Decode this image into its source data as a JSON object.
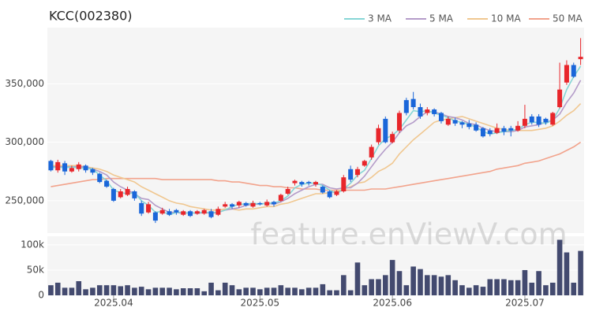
{
  "chart_data": [
    {
      "type": "candlestick",
      "title": "KCC(002380)",
      "annotation": "feature.enViewV.com",
      "up_color": "#e8262b",
      "down_color": "#1a66d9",
      "open": [
        284000,
        276000,
        282000,
        275000,
        277000,
        280000,
        277000,
        273000,
        267000,
        260000,
        253000,
        255000,
        258000,
        248000,
        240000,
        240000,
        239000,
        241000,
        242000,
        238000,
        241000,
        239000,
        239000,
        241000,
        238000,
        245000,
        247000,
        246000,
        248000,
        245000,
        248000,
        246000,
        249000,
        250000,
        256000,
        265000,
        266000,
        266000,
        264000,
        262000,
        258000,
        255000,
        258000,
        277000,
        272000,
        280000,
        287000,
        300000,
        320000,
        300000,
        310000,
        336000,
        337000,
        330000,
        325000,
        328000,
        325000,
        315000,
        319000,
        317000,
        316000,
        315000,
        312000,
        310000,
        308000,
        312000,
        312000,
        310000,
        314000,
        322000,
        322000,
        320000,
        315000,
        330000,
        351000,
        366000,
        371000
      ],
      "high": [
        285000,
        285000,
        284000,
        280000,
        283000,
        281000,
        278000,
        274000,
        268000,
        261000,
        260000,
        262000,
        259000,
        250000,
        249000,
        241000,
        244000,
        243000,
        243000,
        242000,
        242000,
        242000,
        243000,
        243000,
        245000,
        249000,
        248000,
        250000,
        249000,
        250000,
        249000,
        251000,
        250000,
        256000,
        262000,
        268000,
        267000,
        267000,
        267000,
        263000,
        259000,
        259000,
        272000,
        280000,
        279000,
        285000,
        298000,
        315000,
        322000,
        309000,
        327000,
        338000,
        343000,
        333000,
        330000,
        329000,
        326000,
        322000,
        321000,
        318000,
        319000,
        317000,
        313000,
        312000,
        316000,
        314000,
        314000,
        318000,
        332000,
        324000,
        324000,
        321000,
        326000,
        368000,
        370000,
        368000,
        389000
      ],
      "low": [
        275000,
        274000,
        272000,
        274000,
        275000,
        274000,
        272000,
        265000,
        261000,
        249000,
        252000,
        254000,
        250000,
        237000,
        239000,
        231000,
        238000,
        237000,
        238000,
        237000,
        236000,
        238000,
        238000,
        235000,
        237000,
        244000,
        243000,
        244000,
        245000,
        244000,
        246000,
        245000,
        245000,
        249000,
        255000,
        263000,
        262000,
        263000,
        262000,
        256000,
        252000,
        254000,
        257000,
        266000,
        270000,
        279000,
        285000,
        298000,
        299000,
        299000,
        308000,
        323000,
        328000,
        320000,
        323000,
        322000,
        316000,
        314000,
        314000,
        312000,
        311000,
        309000,
        304000,
        305000,
        307000,
        306000,
        305000,
        309000,
        312000,
        315000,
        313000,
        315000,
        314000,
        329000,
        349000,
        355000,
        366000
      ],
      "close": [
        276000,
        283000,
        275000,
        278000,
        281000,
        276000,
        274000,
        266000,
        262000,
        250000,
        258000,
        260000,
        252000,
        239000,
        247000,
        233000,
        242000,
        238000,
        240000,
        241000,
        237000,
        241000,
        242000,
        236000,
        243000,
        247000,
        245000,
        249000,
        246000,
        248000,
        247000,
        249000,
        247000,
        255000,
        260000,
        267000,
        264000,
        265000,
        266000,
        257000,
        253000,
        258000,
        270000,
        268000,
        277000,
        284000,
        296000,
        312000,
        300000,
        307000,
        325000,
        325000,
        330000,
        322000,
        328000,
        324000,
        318000,
        320000,
        316000,
        315000,
        313000,
        310000,
        305000,
        307000,
        312000,
        309000,
        310000,
        314000,
        320000,
        317000,
        315000,
        317000,
        325000,
        345000,
        366000,
        356000,
        373000
      ],
      "series": [
        {
          "name": "3 MA",
          "color": "#86d6d6",
          "values": [
            278000,
            279000,
            278000,
            279000,
            278000,
            278000,
            277000,
            272000,
            267000,
            259000,
            257000,
            256000,
            257000,
            250000,
            246000,
            240000,
            241000,
            238000,
            240000,
            240000,
            239000,
            240000,
            240000,
            240000,
            240000,
            242000,
            245000,
            247000,
            247000,
            248000,
            247000,
            248000,
            248000,
            250000,
            254000,
            261000,
            264000,
            265000,
            265000,
            263000,
            259000,
            256000,
            260000,
            265000,
            272000,
            276000,
            286000,
            297000,
            303000,
            306000,
            311000,
            319000,
            327000,
            326000,
            327000,
            325000,
            323000,
            321000,
            318000,
            317000,
            315000,
            313000,
            309000,
            307000,
            308000,
            309000,
            310000,
            311000,
            315000,
            317000,
            317000,
            316000,
            319000,
            329000,
            345000,
            356000,
            365000
          ]
        },
        {
          "name": "5 MA",
          "color": "#b49cc9",
          "values": [
            279000,
            279000,
            279000,
            279000,
            279000,
            279000,
            277000,
            275000,
            272000,
            266000,
            262000,
            259000,
            256000,
            252000,
            251000,
            246000,
            243000,
            240000,
            240000,
            239000,
            240000,
            239000,
            240000,
            239000,
            240000,
            242000,
            243000,
            244000,
            246000,
            247000,
            247000,
            248000,
            247000,
            249000,
            252000,
            256000,
            259000,
            262000,
            264000,
            264000,
            261000,
            260000,
            261000,
            261000,
            265000,
            271000,
            279000,
            287000,
            294000,
            300000,
            308000,
            314000,
            317000,
            322000,
            326000,
            326000,
            324000,
            322000,
            321000,
            319000,
            316000,
            315000,
            312000,
            310000,
            309000,
            309000,
            309000,
            310000,
            313000,
            314000,
            315000,
            317000,
            319000,
            324000,
            334000,
            342000,
            353000
          ]
        },
        {
          "name": "10 MA",
          "color": "#f0c790",
          "values": [
            280000,
            280000,
            280000,
            280000,
            280000,
            279000,
            278000,
            277000,
            275000,
            272000,
            270000,
            268000,
            266000,
            262000,
            259000,
            256000,
            253000,
            250000,
            248000,
            247000,
            245000,
            244000,
            243000,
            242000,
            242000,
            243000,
            243000,
            242000,
            243000,
            243000,
            244000,
            245000,
            245000,
            247000,
            248000,
            250000,
            252000,
            254000,
            256000,
            256000,
            257000,
            258000,
            260000,
            262000,
            265000,
            266000,
            270000,
            275000,
            278000,
            282000,
            290000,
            296000,
            302000,
            307000,
            312000,
            317000,
            319000,
            320000,
            321000,
            322000,
            320000,
            318000,
            316000,
            314000,
            312000,
            311000,
            310000,
            310000,
            310000,
            310000,
            311000,
            312000,
            314000,
            318000,
            323000,
            327000,
            333000
          ]
        },
        {
          "name": "50 MA",
          "color": "#f2a38c",
          "values": [
            262000,
            263000,
            264000,
            265000,
            266000,
            267000,
            268000,
            268000,
            269000,
            269000,
            269000,
            269000,
            269000,
            269000,
            269000,
            269000,
            268000,
            268000,
            268000,
            268000,
            268000,
            268000,
            268000,
            268000,
            267000,
            267000,
            266000,
            266000,
            265000,
            264000,
            263000,
            263000,
            262000,
            262000,
            261000,
            261000,
            260000,
            260000,
            260000,
            259000,
            259000,
            259000,
            259000,
            259000,
            259000,
            259000,
            260000,
            260000,
            260000,
            261000,
            262000,
            263000,
            264000,
            265000,
            266000,
            267000,
            268000,
            269000,
            270000,
            271000,
            272000,
            273000,
            274000,
            275000,
            277000,
            278000,
            279000,
            280000,
            282000,
            283000,
            284000,
            286000,
            288000,
            290000,
            293000,
            296000,
            300000
          ]
        }
      ],
      "ylim": [
        223000,
        398000
      ],
      "yticks": [
        {
          "value": 250000,
          "label": "250,000"
        },
        {
          "value": 300000,
          "label": "300,000"
        },
        {
          "value": 350000,
          "label": "350,000"
        }
      ],
      "grid": true,
      "legend": "top-right"
    },
    {
      "type": "bar",
      "categories": [
        null,
        null,
        null,
        null,
        null,
        null,
        null,
        null,
        null,
        "2025.04",
        null,
        null,
        null,
        null,
        null,
        null,
        null,
        null,
        null,
        null,
        null,
        null,
        null,
        null,
        null,
        null,
        null,
        null,
        null,
        null,
        "2025.05",
        null,
        null,
        null,
        null,
        null,
        null,
        null,
        null,
        null,
        null,
        null,
        null,
        null,
        null,
        null,
        null,
        null,
        null,
        "2025.06",
        null,
        null,
        null,
        null,
        null,
        null,
        null,
        null,
        null,
        null,
        null,
        null,
        null,
        null,
        null,
        null,
        null,
        null,
        "2025.07",
        null,
        null,
        null,
        null,
        null,
        null,
        null,
        null
      ],
      "values": [
        20000,
        25000,
        15000,
        15000,
        28000,
        12000,
        15000,
        20000,
        20000,
        20000,
        18000,
        20000,
        15000,
        17000,
        12000,
        15000,
        15000,
        15000,
        12000,
        14000,
        14000,
        14000,
        8000,
        25000,
        10000,
        25000,
        20000,
        12000,
        15000,
        15000,
        12000,
        15000,
        15000,
        20000,
        15000,
        15000,
        12000,
        15000,
        15000,
        22000,
        10000,
        10000,
        40000,
        10000,
        65000,
        20000,
        32000,
        32000,
        40000,
        70000,
        48000,
        20000,
        57000,
        52000,
        40000,
        40000,
        37000,
        40000,
        30000,
        20000,
        15000,
        20000,
        17000,
        32000,
        32000,
        32000,
        30000,
        30000,
        50000,
        25000,
        48000,
        20000,
        25000,
        110000,
        85000,
        25000,
        88000
      ],
      "color": "#434a6f",
      "ylim": [
        0,
        117000
      ],
      "yticks": [
        0,
        {
          "value": 50000,
          "label": "50k"
        },
        {
          "value": 100000,
          "label": "100k"
        }
      ],
      "grid": true
    }
  ]
}
